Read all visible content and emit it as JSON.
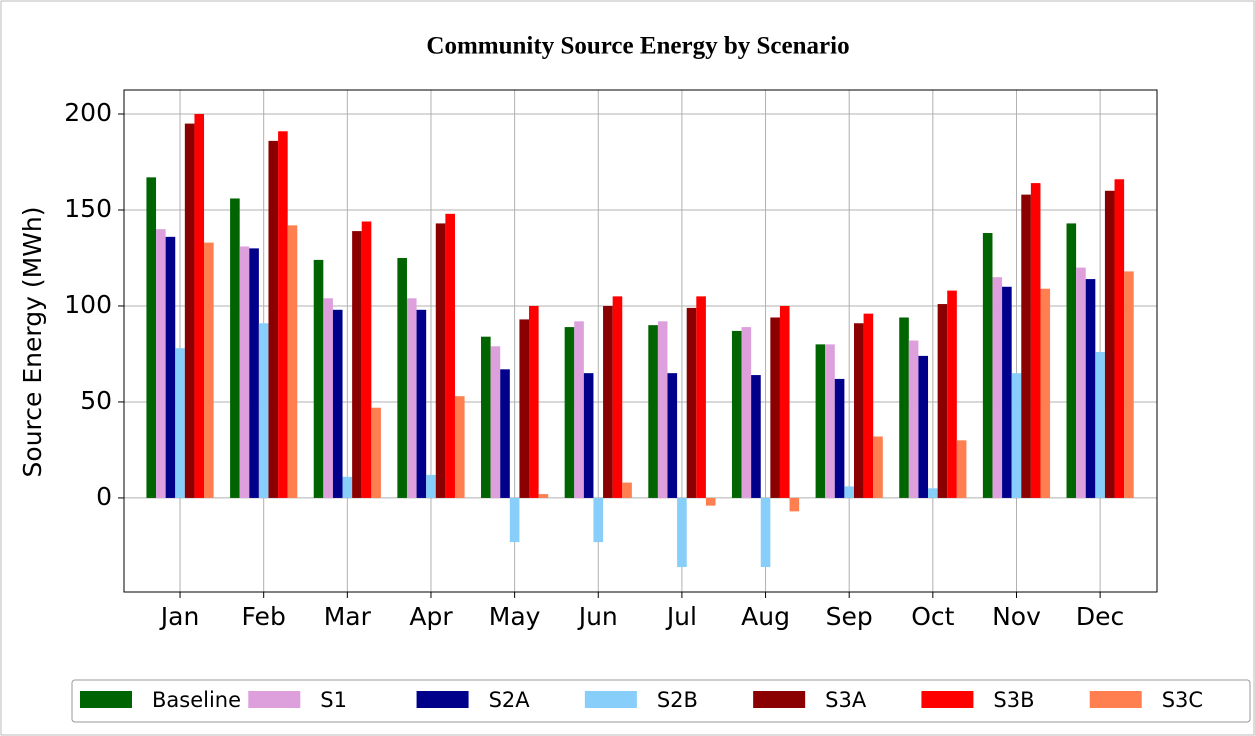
{
  "chart_data": {
    "type": "bar",
    "title": "Community Source Energy by Scenario",
    "y_label": "Source Energy (MWh)",
    "categories": [
      "Jan",
      "Feb",
      "Mar",
      "Apr",
      "May",
      "Jun",
      "Jul",
      "Aug",
      "Sep",
      "Oct",
      "Nov",
      "Dec"
    ],
    "series": [
      {
        "name": "Baseline",
        "color": "#006400",
        "values": [
          167,
          156,
          124,
          125,
          84,
          89,
          90,
          87,
          80,
          94,
          138,
          143
        ]
      },
      {
        "name": "S1",
        "color": "#dda0dd",
        "values": [
          140,
          131,
          104,
          104,
          79,
          92,
          92,
          89,
          80,
          82,
          115,
          120
        ]
      },
      {
        "name": "S2A",
        "color": "#00008b",
        "values": [
          136,
          130,
          98,
          98,
          67,
          65,
          65,
          64,
          62,
          74,
          110,
          114
        ]
      },
      {
        "name": "S2B",
        "color": "#87cefa",
        "values": [
          78,
          91,
          11,
          12,
          -23,
          -23,
          -36,
          -36,
          6,
          5,
          65,
          76
        ]
      },
      {
        "name": "S3A",
        "color": "#8b0000",
        "values": [
          195,
          186,
          139,
          143,
          93,
          100,
          99,
          94,
          91,
          101,
          158,
          160
        ]
      },
      {
        "name": "S3B",
        "color": "#ff0000",
        "values": [
          200,
          191,
          144,
          148,
          100,
          105,
          105,
          100,
          96,
          108,
          164,
          166
        ]
      },
      {
        "name": "S3C",
        "color": "#ff7f50",
        "values": [
          133,
          142,
          47,
          53,
          2,
          8,
          -4,
          -7,
          32,
          30,
          109,
          118
        ]
      }
    ],
    "ylim": [
      -49,
      212.5
    ],
    "yticks": [
      0,
      50,
      100,
      150,
      200
    ],
    "grid": true,
    "legend": "bottom"
  }
}
